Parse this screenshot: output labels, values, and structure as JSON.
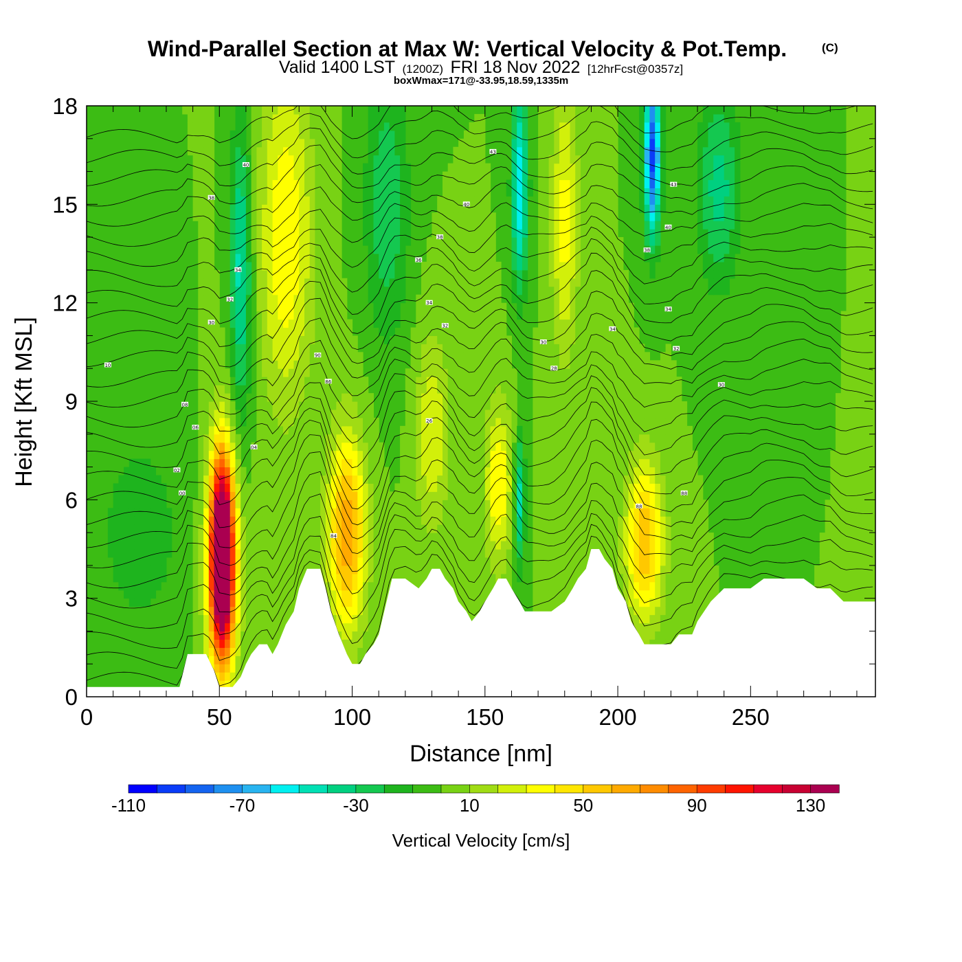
{
  "header": {
    "title": "Wind-Parallel Section at Max W: Vertical Velocity & Pot.Temp.",
    "copyright": "(C)",
    "valid_prefix": "Valid 1400 LST",
    "valid_utc": "(1200Z)",
    "valid_date": "FRI 18 Nov 2022",
    "forecast": "[12hrFcst@0357z]",
    "box_wmax": "boxWmax=171@-33.95,18.59,1335m"
  },
  "chart_data": {
    "type": "heatmap",
    "xlabel": "Distance [nm]",
    "ylabel": "Height [Kft MSL]",
    "xlim": [
      0,
      297
    ],
    "ylim": [
      0,
      18
    ],
    "x_ticks": [
      0,
      50,
      100,
      150,
      200,
      250
    ],
    "y_ticks": [
      0,
      3,
      6,
      9,
      12,
      15,
      18
    ],
    "grid": false,
    "colorbar": {
      "label": "Vertical Velocity [cm/s]",
      "placement": "bottom",
      "min": -110,
      "step": 10,
      "tick_labels": [
        "-110",
        "-70",
        "-30",
        "10",
        "50",
        "90",
        "130"
      ],
      "colors": [
        "#0000ff",
        "#0a3cf8",
        "#1464f0",
        "#1e90f0",
        "#28b4f0",
        "#00f0f0",
        "#00e0b4",
        "#00d080",
        "#14c850",
        "#1eb41e",
        "#3cbc14",
        "#78d214",
        "#a0dc14",
        "#d2f00a",
        "#ffff00",
        "#ffe600",
        "#ffc800",
        "#ffaa00",
        "#ff8c00",
        "#ff6400",
        "#ff3c00",
        "#ff1400",
        "#e6002d",
        "#c80032",
        "#aa0050"
      ]
    },
    "terrain_kft": {
      "x": [
        0,
        5,
        10,
        15,
        20,
        25,
        30,
        35,
        38,
        41,
        45,
        48,
        50,
        52,
        55,
        58,
        60,
        62,
        65,
        68,
        70,
        72,
        75,
        78,
        80,
        83,
        85,
        88,
        90,
        92,
        95,
        98,
        100,
        103,
        105,
        108,
        110,
        115,
        120,
        125,
        128,
        130,
        133,
        135,
        138,
        140,
        143,
        145,
        148,
        150,
        153,
        155,
        158,
        160,
        163,
        165,
        168,
        170,
        175,
        180,
        183,
        185,
        188,
        190,
        193,
        195,
        198,
        200,
        203,
        205,
        208,
        210,
        213,
        215,
        218,
        220,
        223,
        225,
        228,
        230,
        235,
        240,
        245,
        250,
        255,
        260,
        265,
        270,
        275,
        280,
        285,
        290,
        297
      ],
      "y": [
        0.3,
        0.3,
        0.3,
        0.3,
        0.3,
        0.3,
        0.3,
        0.3,
        1.3,
        1.3,
        1.3,
        0.8,
        0.3,
        0.3,
        0.3,
        0.6,
        1.0,
        1.3,
        1.6,
        1.6,
        1.3,
        1.6,
        2.2,
        2.6,
        3.3,
        3.9,
        3.9,
        3.9,
        3.3,
        2.6,
        1.9,
        1.3,
        1.0,
        1.0,
        1.3,
        1.6,
        1.9,
        3.6,
        3.6,
        3.3,
        3.6,
        3.9,
        3.9,
        3.6,
        3.3,
        2.9,
        2.6,
        2.3,
        2.6,
        2.9,
        3.3,
        3.6,
        3.6,
        3.3,
        2.9,
        2.6,
        2.6,
        2.6,
        2.6,
        2.9,
        3.3,
        3.6,
        3.9,
        4.5,
        4.5,
        4.2,
        3.9,
        3.3,
        2.9,
        2.3,
        1.9,
        1.6,
        1.6,
        1.6,
        1.6,
        1.6,
        1.9,
        1.9,
        1.9,
        2.3,
        2.9,
        3.3,
        3.3,
        3.3,
        3.6,
        3.6,
        3.6,
        3.6,
        3.3,
        3.3,
        2.9,
        2.9,
        2.9
      ]
    },
    "w_field_cm_s": {
      "background": 0,
      "features": [
        {
          "x": 51,
          "y": 4.3,
          "value": 150,
          "x_radius": 4,
          "y_radius": 2.7
        },
        {
          "x": 51,
          "y": 4.0,
          "value": 70,
          "x_radius": 6,
          "y_radius": 3.8
        },
        {
          "x": 98,
          "y": 5.0,
          "value": 70,
          "x_radius": 7,
          "y_radius": 3.0
        },
        {
          "x": 210,
          "y": 4.7,
          "value": 60,
          "x_radius": 7,
          "y_radius": 2.4
        },
        {
          "x": 75,
          "y": 14.0,
          "value": 40,
          "x_radius": 10,
          "y_radius": 5.0
        },
        {
          "x": 155,
          "y": 6.5,
          "value": 40,
          "x_radius": 5,
          "y_radius": 2.5
        },
        {
          "x": 130,
          "y": 8.0,
          "value": 30,
          "x_radius": 6,
          "y_radius": 3.0
        },
        {
          "x": 180,
          "y": 14.5,
          "value": 35,
          "x_radius": 5,
          "y_radius": 4.0
        },
        {
          "x": 58,
          "y": 13.0,
          "value": -45,
          "x_radius": 4,
          "y_radius": 4.5
        },
        {
          "x": 163,
          "y": 15.5,
          "value": -60,
          "x_radius": 3,
          "y_radius": 3.0
        },
        {
          "x": 163,
          "y": 6.0,
          "value": -45,
          "x_radius": 2,
          "y_radius": 2.0
        },
        {
          "x": 213,
          "y": 16.5,
          "value": -95,
          "x_radius": 3,
          "y_radius": 2.5
        },
        {
          "x": 113,
          "y": 15.0,
          "value": -30,
          "x_radius": 8,
          "y_radius": 4.0
        },
        {
          "x": 238,
          "y": 15.5,
          "value": -35,
          "x_radius": 8,
          "y_radius": 3.0
        },
        {
          "x": 20,
          "y": 5.0,
          "value": -15,
          "x_radius": 18,
          "y_radius": 3.5
        }
      ]
    },
    "theta_contour_labels": [
      {
        "x": 60,
        "y": 16.2,
        "text": "40"
      },
      {
        "x": 47,
        "y": 15.2,
        "text": "38"
      },
      {
        "x": 57,
        "y": 13.0,
        "text": "34"
      },
      {
        "x": 54,
        "y": 12.1,
        "text": "32"
      },
      {
        "x": 47,
        "y": 11.4,
        "text": "30"
      },
      {
        "x": 8,
        "y": 10.1,
        "text": "10"
      },
      {
        "x": 37,
        "y": 8.9,
        "text": "08"
      },
      {
        "x": 41,
        "y": 8.2,
        "text": "06"
      },
      {
        "x": 63,
        "y": 7.6,
        "text": "04"
      },
      {
        "x": 34,
        "y": 6.9,
        "text": "02"
      },
      {
        "x": 36,
        "y": 6.2,
        "text": "00"
      },
      {
        "x": 87,
        "y": 10.4,
        "text": "90"
      },
      {
        "x": 91,
        "y": 9.6,
        "text": "86"
      },
      {
        "x": 93,
        "y": 4.9,
        "text": "84"
      },
      {
        "x": 153,
        "y": 16.6,
        "text": "43"
      },
      {
        "x": 143,
        "y": 15.0,
        "text": "40"
      },
      {
        "x": 133,
        "y": 14.0,
        "text": "38"
      },
      {
        "x": 125,
        "y": 13.3,
        "text": "36"
      },
      {
        "x": 129,
        "y": 12.0,
        "text": "34"
      },
      {
        "x": 135,
        "y": 11.3,
        "text": "32"
      },
      {
        "x": 172,
        "y": 10.8,
        "text": "30"
      },
      {
        "x": 176,
        "y": 10.0,
        "text": "28"
      },
      {
        "x": 129,
        "y": 8.4,
        "text": "26"
      },
      {
        "x": 221,
        "y": 15.6,
        "text": "43"
      },
      {
        "x": 219,
        "y": 14.3,
        "text": "40"
      },
      {
        "x": 211,
        "y": 13.6,
        "text": "38"
      },
      {
        "x": 219,
        "y": 11.8,
        "text": "34"
      },
      {
        "x": 198,
        "y": 11.2,
        "text": "34"
      },
      {
        "x": 222,
        "y": 10.6,
        "text": "32"
      },
      {
        "x": 239,
        "y": 9.5,
        "text": "30"
      },
      {
        "x": 225,
        "y": 6.2,
        "text": "88"
      },
      {
        "x": 208,
        "y": 5.8,
        "text": "88"
      }
    ]
  }
}
